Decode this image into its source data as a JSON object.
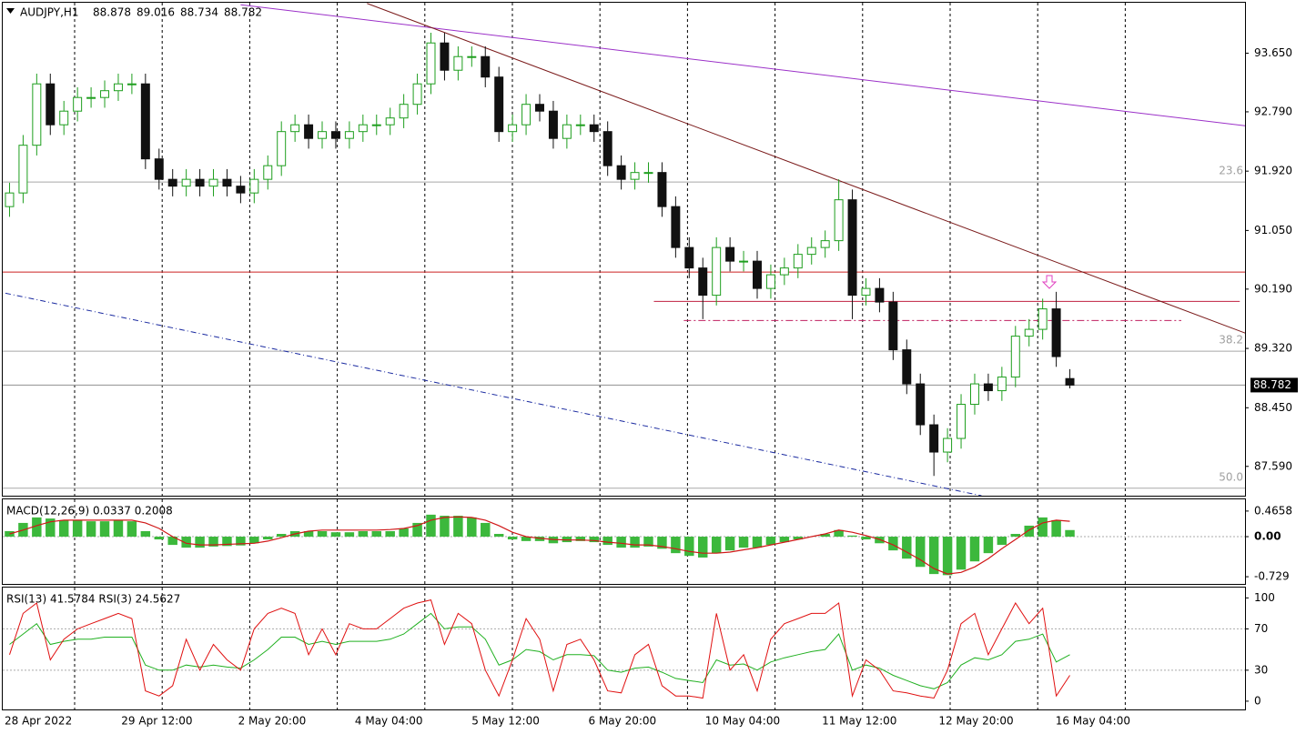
{
  "chart_data": [
    {
      "type": "candlestick",
      "title": "AUDJPY,H1",
      "up_color": "#1e9e1e",
      "down_color": "#111111",
      "xlim": [
        -0.5,
        78.5
      ],
      "ylim": [
        87.16,
        94.39
      ],
      "yticks": [
        {
          "value": 93.65,
          "label": "93.650"
        },
        {
          "value": 92.79,
          "label": "92.790"
        },
        {
          "value": 91.92,
          "label": "91.920"
        },
        {
          "value": 91.05,
          "label": "91.050"
        },
        {
          "value": 90.19,
          "label": "90.190"
        },
        {
          "value": 89.32,
          "label": "89.320"
        },
        {
          "value": 88.45,
          "label": "88.450"
        },
        {
          "value": 87.59,
          "label": "87.590"
        }
      ],
      "x_labels": [
        "28 Apr 2022",
        "29 Apr 12:00",
        "2 May 20:00",
        "4 May 04:00",
        "5 May 12:00",
        "6 May 20:00",
        "10 May 04:00",
        "11 May 12:00",
        "12 May 20:00",
        "16 May 04:00"
      ],
      "grid": true,
      "candles": {
        "open": [
          91.4,
          91.6,
          92.3,
          93.2,
          92.6,
          92.8,
          93.0,
          93.0,
          93.1,
          93.2,
          93.2,
          92.1,
          91.8,
          91.7,
          91.8,
          91.7,
          91.8,
          91.7,
          91.6,
          91.8,
          92.0,
          92.5,
          92.6,
          92.4,
          92.5,
          92.4,
          92.5,
          92.6,
          92.6,
          92.7,
          92.9,
          93.2,
          93.8,
          93.4,
          93.6,
          93.6,
          93.3,
          92.5,
          92.6,
          92.9,
          92.8,
          92.4,
          92.6,
          92.6,
          92.5,
          92.0,
          91.8,
          91.9,
          91.9,
          91.4,
          90.8,
          90.5,
          90.1,
          90.8,
          90.6,
          90.6,
          90.2,
          90.4,
          90.5,
          90.7,
          90.8,
          90.9,
          91.5,
          90.1,
          90.2,
          90.0,
          89.3,
          88.8,
          88.2,
          87.8,
          88.0,
          88.5,
          88.8,
          88.7,
          88.9,
          89.5,
          89.6,
          89.9,
          88.878
        ],
        "high": [
          91.75,
          92.45,
          93.35,
          93.35,
          92.95,
          93.15,
          93.15,
          93.25,
          93.35,
          93.35,
          93.35,
          92.25,
          91.95,
          91.95,
          91.95,
          91.95,
          91.95,
          91.85,
          91.95,
          92.15,
          92.65,
          92.75,
          92.75,
          92.65,
          92.65,
          92.65,
          92.75,
          92.75,
          92.85,
          93.05,
          93.35,
          93.95,
          93.95,
          93.75,
          93.75,
          93.75,
          93.45,
          92.75,
          93.05,
          93.05,
          92.95,
          92.75,
          92.75,
          92.75,
          92.65,
          92.15,
          92.05,
          92.05,
          92.05,
          91.55,
          90.95,
          90.65,
          90.95,
          90.95,
          90.75,
          90.75,
          90.55,
          90.65,
          90.85,
          90.95,
          91.05,
          91.8,
          91.65,
          90.35,
          90.35,
          90.15,
          89.45,
          88.95,
          88.35,
          88.15,
          88.65,
          88.95,
          88.95,
          89.05,
          89.65,
          89.75,
          90.05,
          90.15,
          89.016
        ],
        "low": [
          91.25,
          91.45,
          92.15,
          92.45,
          92.45,
          92.65,
          92.85,
          92.85,
          92.95,
          93.05,
          91.95,
          91.65,
          91.55,
          91.55,
          91.55,
          91.55,
          91.55,
          91.45,
          91.45,
          91.65,
          91.85,
          92.35,
          92.25,
          92.25,
          92.25,
          92.25,
          92.35,
          92.45,
          92.45,
          92.55,
          92.75,
          93.05,
          93.25,
          93.25,
          93.45,
          93.15,
          92.35,
          92.35,
          92.45,
          92.65,
          92.25,
          92.25,
          92.45,
          92.35,
          91.85,
          91.65,
          91.65,
          91.75,
          91.25,
          90.65,
          90.35,
          89.75,
          89.95,
          90.45,
          90.45,
          90.05,
          90.05,
          90.25,
          90.35,
          90.55,
          90.65,
          90.75,
          89.75,
          89.95,
          89.85,
          89.15,
          88.65,
          88.05,
          87.45,
          87.65,
          87.85,
          88.35,
          88.55,
          88.55,
          88.75,
          89.35,
          89.45,
          89.05,
          88.734
        ],
        "close": [
          91.6,
          92.3,
          93.2,
          92.6,
          92.8,
          93.0,
          93.0,
          93.1,
          93.2,
          93.2,
          92.1,
          91.8,
          91.7,
          91.8,
          91.7,
          91.8,
          91.7,
          91.6,
          91.8,
          92.0,
          92.5,
          92.6,
          92.4,
          92.5,
          92.4,
          92.5,
          92.6,
          92.6,
          92.7,
          92.9,
          93.2,
          93.8,
          93.4,
          93.6,
          93.6,
          93.3,
          92.5,
          92.6,
          92.9,
          92.8,
          92.4,
          92.6,
          92.6,
          92.5,
          92.0,
          91.8,
          91.9,
          91.9,
          91.4,
          90.8,
          90.5,
          90.1,
          90.8,
          90.6,
          90.6,
          90.2,
          90.4,
          90.5,
          90.7,
          90.8,
          90.9,
          91.5,
          90.1,
          90.2,
          90.0,
          89.3,
          88.8,
          88.2,
          87.8,
          88.0,
          88.5,
          88.8,
          88.7,
          88.9,
          89.5,
          89.6,
          89.9,
          89.2,
          88.782
        ]
      },
      "trendlines": [
        {
          "color": "#9b30c8",
          "dash": "",
          "x": [
            17.0,
            91.1
          ],
          "y": [
            94.36,
            92.58
          ]
        },
        {
          "color": "#7a1a1a",
          "dash": "",
          "x": [
            26.3,
            91.1
          ],
          "y": [
            94.38,
            89.53
          ]
        },
        {
          "color": "#1a2aa0",
          "dash": "6 3 1 3",
          "x": [
            -0.3,
            71.5
          ],
          "y": [
            90.13,
            87.16
          ]
        }
      ],
      "levels": [
        {
          "color": "#cc2020",
          "dash": "",
          "x": [
            -0.5,
            91.1
          ],
          "price": 90.44
        },
        {
          "color": "#c02040",
          "dash": "",
          "x": [
            47.4,
            90.5
          ],
          "price": 90.01
        },
        {
          "color": "#c02060",
          "dash": "8 3 2 3",
          "x": [
            49.6,
            86.2
          ],
          "price": 89.73
        }
      ],
      "fib_levels": [
        {
          "label": "23.6",
          "price": 91.76
        },
        {
          "label": "38.2",
          "price": 89.28
        },
        {
          "label": "50.0",
          "price": 87.27
        }
      ]
    },
    {
      "type": "macd",
      "title": "MACD(12,26,9) 0.0337 0.2008",
      "ylim": [
        -0.86,
        0.679
      ],
      "yticks": [
        0.4658,
        {
          "value": 0,
          "label": "0.00"
        },
        -0.729
      ],
      "histogram": {
        "color": "#3cb83c",
        "values": [
          0.1,
          0.25,
          0.35,
          0.33,
          0.3,
          0.3,
          0.28,
          0.28,
          0.3,
          0.28,
          0.1,
          -0.05,
          -0.15,
          -0.2,
          -0.2,
          -0.18,
          -0.17,
          -0.16,
          -0.12,
          -0.05,
          0.05,
          0.1,
          0.1,
          0.1,
          0.08,
          0.08,
          0.1,
          0.1,
          0.1,
          0.15,
          0.25,
          0.4,
          0.38,
          0.38,
          0.35,
          0.25,
          0.05,
          -0.05,
          -0.08,
          -0.08,
          -0.12,
          -0.1,
          -0.08,
          -0.1,
          -0.15,
          -0.2,
          -0.2,
          -0.18,
          -0.22,
          -0.3,
          -0.35,
          -0.38,
          -0.3,
          -0.25,
          -0.2,
          -0.2,
          -0.15,
          -0.1,
          -0.05,
          0,
          0.05,
          0.12,
          0.02,
          -0.05,
          -0.12,
          -0.25,
          -0.4,
          -0.55,
          -0.68,
          -0.7,
          -0.6,
          -0.45,
          -0.3,
          -0.15,
          0.05,
          0.2,
          0.35,
          0.3,
          0.12
        ]
      },
      "signal": {
        "color": "#d01818",
        "values": [
          0.05,
          0.12,
          0.2,
          0.27,
          0.3,
          0.3,
          0.3,
          0.3,
          0.3,
          0.3,
          0.25,
          0.15,
          0,
          -0.12,
          -0.15,
          -0.15,
          -0.14,
          -0.13,
          -0.12,
          -0.08,
          -0.02,
          0.05,
          0.1,
          0.12,
          0.12,
          0.12,
          0.12,
          0.12,
          0.13,
          0.15,
          0.2,
          0.3,
          0.35,
          0.36,
          0.35,
          0.3,
          0.2,
          0.08,
          0,
          -0.03,
          -0.05,
          -0.06,
          -0.06,
          -0.07,
          -0.1,
          -0.12,
          -0.15,
          -0.15,
          -0.18,
          -0.22,
          -0.27,
          -0.3,
          -0.3,
          -0.28,
          -0.24,
          -0.2,
          -0.15,
          -0.1,
          -0.05,
          0,
          0.05,
          0.12,
          0.08,
          0.02,
          -0.05,
          -0.15,
          -0.28,
          -0.42,
          -0.58,
          -0.68,
          -0.65,
          -0.55,
          -0.4,
          -0.22,
          -0.05,
          0.12,
          0.25,
          0.3,
          0.28
        ]
      }
    },
    {
      "type": "rsi",
      "title": "RSI(13) 41.5784 RSI(3) 24.5627",
      "ylim": [
        -8,
        110
      ],
      "yticks": [
        100,
        70,
        30,
        0
      ],
      "levels": [
        70,
        30
      ],
      "series": [
        {
          "color": "#20b020",
          "values": [
            55,
            65,
            75,
            55,
            58,
            60,
            60,
            62,
            62,
            62,
            35,
            30,
            30,
            35,
            33,
            35,
            33,
            32,
            40,
            50,
            62,
            62,
            55,
            58,
            55,
            58,
            58,
            58,
            60,
            65,
            75,
            85,
            70,
            72,
            72,
            60,
            35,
            40,
            50,
            48,
            40,
            45,
            45,
            44,
            30,
            28,
            32,
            33,
            28,
            22,
            20,
            18,
            40,
            35,
            36,
            30,
            38,
            42,
            45,
            48,
            50,
            65,
            30,
            35,
            32,
            25,
            20,
            15,
            12,
            18,
            35,
            42,
            40,
            45,
            58,
            60,
            65,
            38,
            45
          ]
        },
        {
          "color": "#e01010",
          "values": [
            45,
            85,
            95,
            40,
            60,
            70,
            75,
            80,
            85,
            80,
            10,
            5,
            15,
            60,
            30,
            55,
            40,
            30,
            70,
            85,
            90,
            85,
            45,
            70,
            45,
            75,
            70,
            70,
            80,
            90,
            95,
            98,
            55,
            85,
            75,
            30,
            5,
            40,
            80,
            60,
            10,
            55,
            60,
            40,
            10,
            8,
            45,
            55,
            15,
            5,
            5,
            3,
            85,
            30,
            45,
            10,
            60,
            75,
            80,
            85,
            85,
            95,
            5,
            40,
            30,
            10,
            8,
            5,
            3,
            30,
            75,
            85,
            45,
            70,
            95,
            75,
            90,
            5,
            25
          ]
        }
      ]
    }
  ]
}
